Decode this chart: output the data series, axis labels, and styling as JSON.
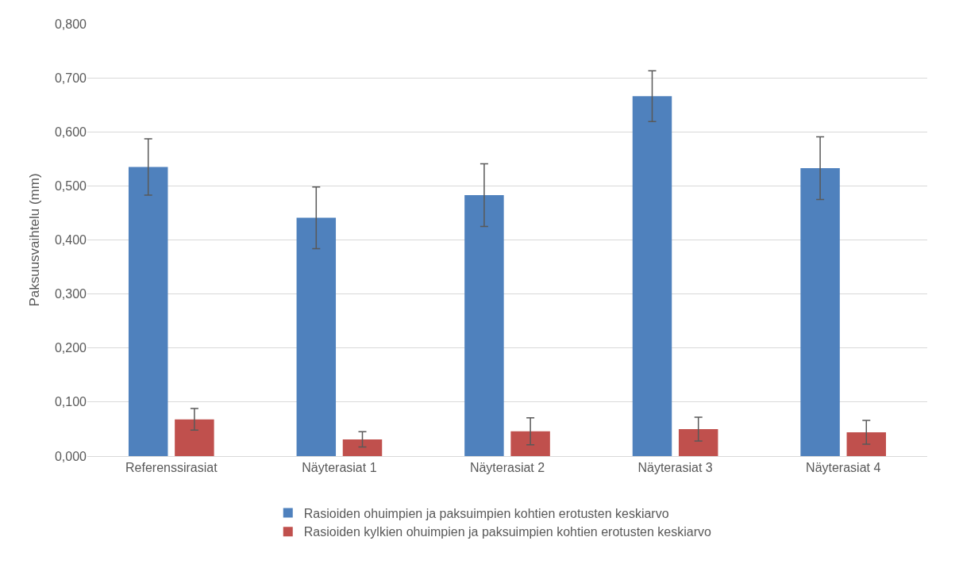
{
  "chart_data": {
    "type": "bar",
    "ylabel": "Paksuusvaihtelu (mm)",
    "categories": [
      "Referenssirasiat",
      "Näyterasiat 1",
      "Näyterasiat 2",
      "Näyterasiat 3",
      "Näyterasiat 4"
    ],
    "series": [
      {
        "name": "Rasioiden ohuimpien ja paksuimpien kohtien erotusten keskiarvo",
        "color": "#4f81bd",
        "values": [
          0.535,
          0.441,
          0.483,
          0.666,
          0.533
        ],
        "errors": [
          0.052,
          0.057,
          0.058,
          0.047,
          0.058
        ]
      },
      {
        "name": "Rasioiden kylkien ohuimpien ja paksuimpien kohtien erotusten keskiarvo",
        "color": "#c0504d",
        "values": [
          0.068,
          0.031,
          0.046,
          0.05,
          0.044
        ],
        "errors": [
          0.02,
          0.014,
          0.025,
          0.022,
          0.022
        ]
      }
    ],
    "ylim": [
      0,
      0.8
    ],
    "yticks": [
      {
        "value": 0,
        "label": "0,000"
      },
      {
        "value": 0.1,
        "label": "0,100"
      },
      {
        "value": 0.2,
        "label": "0,200"
      },
      {
        "value": 0.3,
        "label": "0,300"
      },
      {
        "value": 0.4,
        "label": "0,400"
      },
      {
        "value": 0.5,
        "label": "0,500"
      },
      {
        "value": 0.6,
        "label": "0,600"
      },
      {
        "value": 0.7,
        "label": "0,700"
      },
      {
        "value": 0.8,
        "label": "0,800"
      }
    ],
    "grid": "y",
    "legend": "bottom"
  }
}
